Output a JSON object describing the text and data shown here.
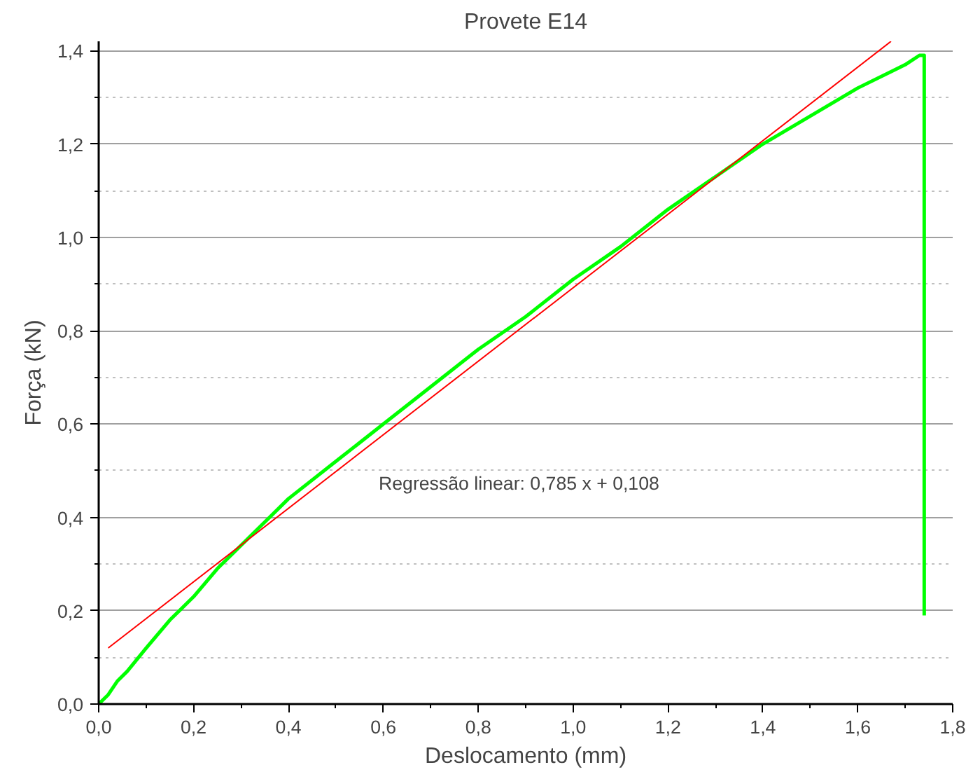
{
  "chart_data": {
    "type": "line",
    "title": "Provete E14",
    "xlabel": "Deslocamento (mm)",
    "ylabel": "Força (kN)",
    "x": [
      0,
      0.02,
      0.04,
      0.06,
      0.1,
      0.15,
      0.2,
      0.25,
      0.3,
      0.35,
      0.4,
      0.5,
      0.6,
      0.7,
      0.8,
      0.9,
      1.0,
      1.1,
      1.2,
      1.3,
      1.4,
      1.5,
      1.6,
      1.7,
      1.73,
      1.74,
      1.74
    ],
    "series": [
      {
        "color": "#00ff00",
        "values": [
          0,
          0.02,
          0.05,
          0.07,
          0.12,
          0.18,
          0.23,
          0.29,
          0.34,
          0.39,
          0.44,
          0.52,
          0.6,
          0.68,
          0.76,
          0.83,
          0.91,
          0.98,
          1.06,
          1.13,
          1.2,
          1.26,
          1.32,
          1.37,
          1.39,
          1.39,
          0.19
        ]
      },
      {
        "type": "line",
        "color": "#ff0000",
        "x": [
          0.02,
          1.67
        ],
        "values": [
          0.12,
          1.42
        ]
      }
    ],
    "annotations": [
      "Regressão linear: 0,785 x + 0,108"
    ],
    "xlim": [
      0,
      1.8
    ],
    "ylim": [
      0,
      1.42
    ],
    "xticks": [
      {
        "value": 0,
        "label": "0,0"
      },
      {
        "value": 0.2,
        "label": "0,2"
      },
      {
        "value": 0.4,
        "label": "0,4"
      },
      {
        "value": 0.6,
        "label": "0,6"
      },
      {
        "value": 0.8,
        "label": "0,8"
      },
      {
        "value": 1.0,
        "label": "1,0"
      },
      {
        "value": 1.2,
        "label": "1,2"
      },
      {
        "value": 1.4,
        "label": "1,4"
      },
      {
        "value": 1.6,
        "label": "1,6"
      },
      {
        "value": 1.8,
        "label": "1,8"
      }
    ],
    "yticks": [
      {
        "value": 0,
        "label": "0,0"
      },
      {
        "value": 0.2,
        "label": "0,2"
      },
      {
        "value": 0.4,
        "label": "0,4"
      },
      {
        "value": 0.6,
        "label": "0,6"
      },
      {
        "value": 0.8,
        "label": "0,8"
      },
      {
        "value": 1.0,
        "label": "1,0"
      },
      {
        "value": 1.2,
        "label": "1,2"
      },
      {
        "value": 1.4,
        "label": "1,4"
      }
    ],
    "grid": "y",
    "marker": "none",
    "line_style": "solid"
  }
}
